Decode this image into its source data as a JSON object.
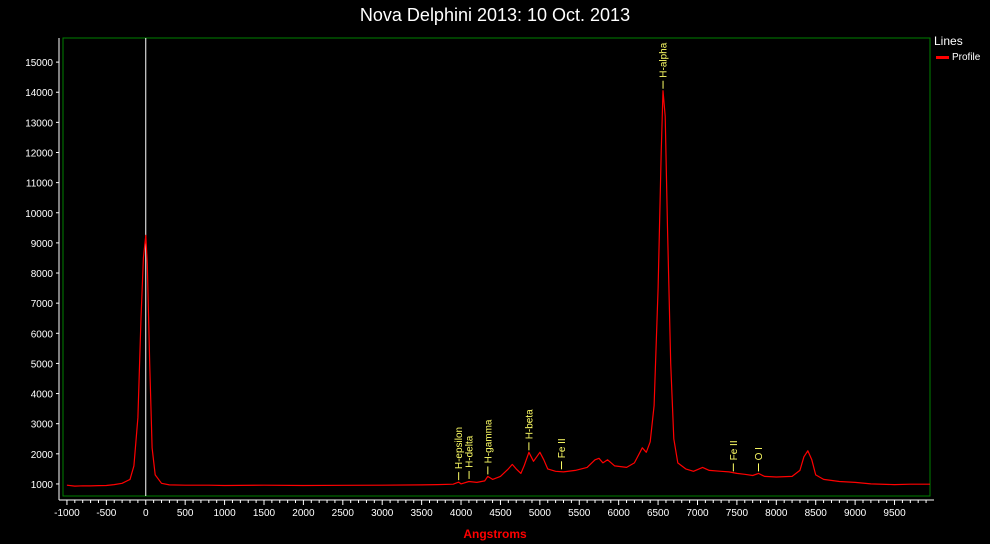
{
  "chart_data": {
    "type": "line",
    "title": "Nova Delphini 2013: 10 Oct. 2013",
    "xlabel": "Angstroms",
    "ylabel": "",
    "xlim": [
      -1050,
      9950
    ],
    "ylim": [
      600,
      15800
    ],
    "x_ticks": [
      -1000,
      -500,
      0,
      500,
      1000,
      1500,
      2000,
      2500,
      3000,
      3500,
      4000,
      4500,
      5000,
      5500,
      6000,
      6500,
      7000,
      7500,
      8000,
      8500,
      9000,
      9500
    ],
    "x_tick_labels": [
      "-1000",
      "-500",
      "0",
      "500",
      "1000",
      "1500",
      "2000",
      "2500",
      "3000",
      "3500",
      "4000",
      "4500",
      "5000",
      "5500",
      "6000",
      "6500",
      "7000",
      "7500",
      "8000",
      "8500",
      "9000",
      "9500"
    ],
    "y_ticks": [
      1000,
      2000,
      3000,
      4000,
      5000,
      6000,
      7000,
      8000,
      9000,
      10000,
      11000,
      12000,
      13000,
      14000,
      15000
    ],
    "y_tick_labels": [
      "1000",
      "2000",
      "3000",
      "4000",
      "5000",
      "6000",
      "7000",
      "8000",
      "9000",
      "10000",
      "11000",
      "12000",
      "13000",
      "14000",
      "15000"
    ],
    "reference_line_x": 0,
    "legend": {
      "title": "Lines",
      "placement": "right"
    },
    "series": [
      {
        "name": "Profile",
        "color": "#ff0000",
        "points": [
          [
            -1000,
            960
          ],
          [
            -900,
            930
          ],
          [
            -800,
            940
          ],
          [
            -700,
            935
          ],
          [
            -600,
            945
          ],
          [
            -500,
            950
          ],
          [
            -400,
            980
          ],
          [
            -300,
            1020
          ],
          [
            -200,
            1150
          ],
          [
            -150,
            1600
          ],
          [
            -100,
            3200
          ],
          [
            -60,
            6500
          ],
          [
            -30,
            8500
          ],
          [
            0,
            9250
          ],
          [
            20,
            8300
          ],
          [
            50,
            5000
          ],
          [
            80,
            2200
          ],
          [
            120,
            1300
          ],
          [
            200,
            1020
          ],
          [
            300,
            970
          ],
          [
            500,
            960
          ],
          [
            800,
            960
          ],
          [
            1000,
            950
          ],
          [
            1500,
            960
          ],
          [
            2000,
            950
          ],
          [
            2500,
            955
          ],
          [
            3000,
            960
          ],
          [
            3500,
            970
          ],
          [
            3700,
            980
          ],
          [
            3900,
            990
          ],
          [
            3970,
            1060
          ],
          [
            4000,
            1000
          ],
          [
            4100,
            1080
          ],
          [
            4200,
            1050
          ],
          [
            4300,
            1100
          ],
          [
            4340,
            1250
          ],
          [
            4400,
            1150
          ],
          [
            4500,
            1250
          ],
          [
            4600,
            1500
          ],
          [
            4650,
            1650
          ],
          [
            4700,
            1500
          ],
          [
            4760,
            1350
          ],
          [
            4800,
            1600
          ],
          [
            4861,
            2050
          ],
          [
            4920,
            1750
          ],
          [
            5000,
            2050
          ],
          [
            5050,
            1800
          ],
          [
            5100,
            1500
          ],
          [
            5200,
            1420
          ],
          [
            5300,
            1400
          ],
          [
            5450,
            1450
          ],
          [
            5600,
            1550
          ],
          [
            5700,
            1800
          ],
          [
            5750,
            1850
          ],
          [
            5800,
            1700
          ],
          [
            5860,
            1800
          ],
          [
            5950,
            1600
          ],
          [
            6100,
            1550
          ],
          [
            6200,
            1700
          ],
          [
            6300,
            2200
          ],
          [
            6350,
            2050
          ],
          [
            6400,
            2400
          ],
          [
            6450,
            3600
          ],
          [
            6500,
            7500
          ],
          [
            6540,
            12000
          ],
          [
            6563,
            14050
          ],
          [
            6590,
            13200
          ],
          [
            6620,
            9500
          ],
          [
            6660,
            5000
          ],
          [
            6700,
            2500
          ],
          [
            6750,
            1700
          ],
          [
            6850,
            1500
          ],
          [
            6950,
            1420
          ],
          [
            7065,
            1550
          ],
          [
            7150,
            1450
          ],
          [
            7300,
            1420
          ],
          [
            7400,
            1400
          ],
          [
            7500,
            1350
          ],
          [
            7600,
            1320
          ],
          [
            7700,
            1280
          ],
          [
            7774,
            1350
          ],
          [
            7850,
            1250
          ],
          [
            8000,
            1230
          ],
          [
            8200,
            1250
          ],
          [
            8300,
            1450
          ],
          [
            8350,
            1900
          ],
          [
            8400,
            2100
          ],
          [
            8450,
            1800
          ],
          [
            8500,
            1300
          ],
          [
            8600,
            1150
          ],
          [
            8800,
            1080
          ],
          [
            9000,
            1050
          ],
          [
            9200,
            1000
          ],
          [
            9500,
            980
          ],
          [
            9700,
            990
          ],
          [
            9950,
            990
          ]
        ]
      }
    ],
    "annotations": [
      {
        "label": "H-epsilon",
        "x": 3970,
        "y": 1060
      },
      {
        "label": "H-delta",
        "x": 4102,
        "y": 1100
      },
      {
        "label": "H-gamma",
        "x": 4340,
        "y": 1250
      },
      {
        "label": "H-beta",
        "x": 4861,
        "y": 2050
      },
      {
        "label": "Fe II",
        "x": 5275,
        "y": 1420
      },
      {
        "label": "H-alpha",
        "x": 6563,
        "y": 14050
      },
      {
        "label": "Fe II",
        "x": 7455,
        "y": 1350
      },
      {
        "label": "O I",
        "x": 7774,
        "y": 1350
      }
    ]
  }
}
